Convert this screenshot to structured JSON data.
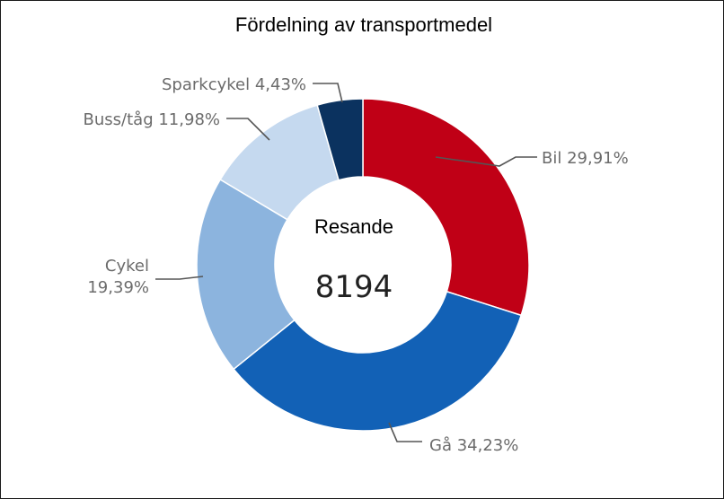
{
  "chart_data": {
    "type": "donut",
    "title": "Fördelning av transportmedel",
    "center": {
      "label": "Resande",
      "value": "8194"
    },
    "slices": [
      {
        "name": "Bil",
        "value": 29.91,
        "value_text": "29,91%",
        "color": "#c00016",
        "label_lines": [
          "Bil 29,91%"
        ]
      },
      {
        "name": "Gå",
        "value": 34.23,
        "value_text": "34,23%",
        "color": "#1261b6",
        "label_lines": [
          "Gå 34,23%"
        ]
      },
      {
        "name": "Cykel",
        "value": 19.39,
        "value_text": "19,39%",
        "color": "#8cb4de",
        "label_lines": [
          "Cykel",
          "19,39%"
        ]
      },
      {
        "name": "Buss/tåg",
        "value": 11.98,
        "value_text": "11,98%",
        "color": "#c5d9ef",
        "label_lines": [
          "Buss/tåg 11,98%"
        ]
      },
      {
        "name": "Sparkcykel",
        "value": 4.43,
        "value_text": "4,43%",
        "color": "#0b325f",
        "label_lines": [
          "Sparkcykel 4,43%"
        ]
      }
    ],
    "start_angle": "top",
    "direction": "clockwise",
    "legend": "none"
  }
}
